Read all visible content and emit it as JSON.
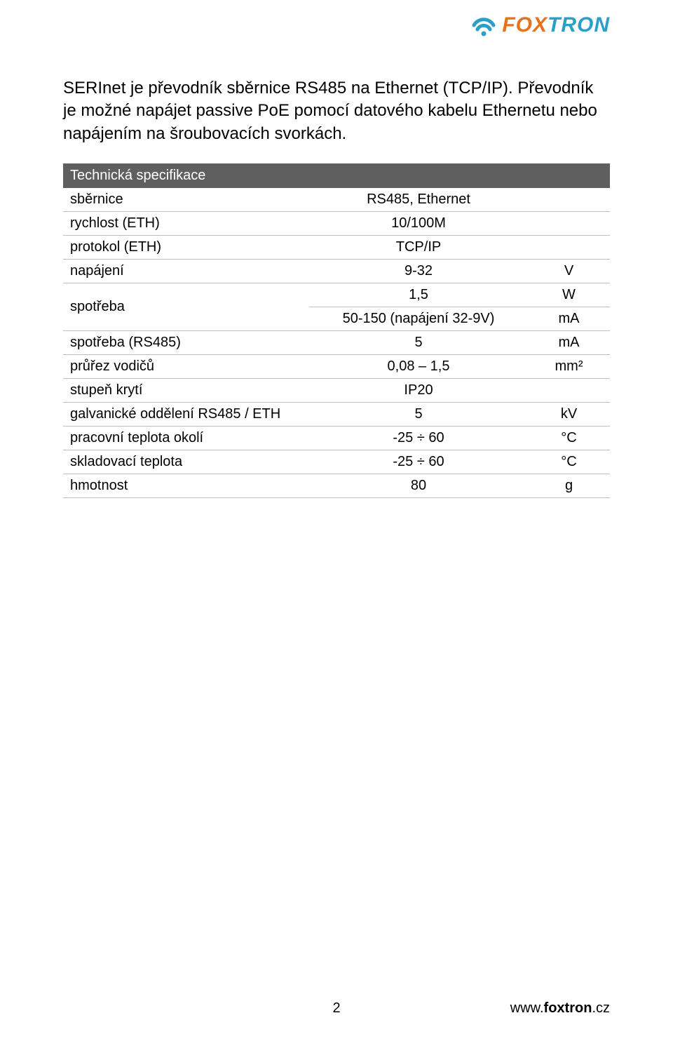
{
  "logo": {
    "brand_fox": "FOX",
    "brand_tron": "TRON",
    "color_orange": "#e8711c",
    "color_blue": "#2aa0c8"
  },
  "intro": "SERInet je převodník sběrnice RS485 na Ethernet (TCP/IP). Převodník je možné napájet passive PoE pomocí datového kabelu Ethernetu nebo napájením na šroubovacích svorkách.",
  "spec": {
    "header": "Technická specifikace",
    "header_bg": "#5f5f5f",
    "row_border": "#bfbfbf",
    "rows": [
      {
        "label": "sběrnice",
        "value": "RS485, Ethernet",
        "unit": ""
      },
      {
        "label": "rychlost (ETH)",
        "value": "10/100M",
        "unit": ""
      },
      {
        "label": "protokol (ETH)",
        "value": "TCP/IP",
        "unit": ""
      },
      {
        "label": "napájení",
        "value": "9-32",
        "unit": "V"
      },
      {
        "label": "spotřeba",
        "value": "1,5",
        "unit": "W",
        "rowspan": 2
      },
      {
        "label": "",
        "value": "50-150 (napájení 32-9V)",
        "unit": "mA",
        "continuation": true
      },
      {
        "label": "spotřeba (RS485)",
        "value": "5",
        "unit": "mA"
      },
      {
        "label": "průřez vodičů",
        "value": "0,08 – 1,5",
        "unit": "mm²"
      },
      {
        "label": "stupeň krytí",
        "value": "IP20",
        "unit": ""
      },
      {
        "label": "galvanické oddělení RS485 / ETH",
        "value": "5",
        "unit": "kV"
      },
      {
        "label": "pracovní teplota okolí",
        "value": "-25 ÷ 60",
        "unit": "°C"
      },
      {
        "label": "skladovací teplota",
        "value": "-25 ÷ 60",
        "unit": "°C"
      },
      {
        "label": "hmotnost",
        "value": "80",
        "unit": "g"
      }
    ]
  },
  "footer": {
    "page_number": "2",
    "url_prefix": "www.",
    "url_bold": "foxtron",
    "url_suffix": ".cz"
  }
}
